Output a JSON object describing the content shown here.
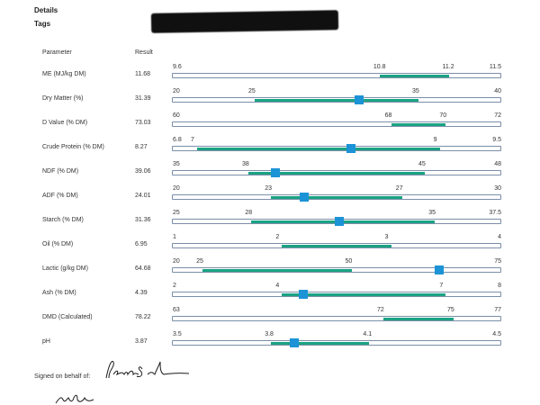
{
  "header": {
    "details_label": "Details",
    "tags_label": "Tags"
  },
  "table": {
    "param_header": "Parameter",
    "result_header": "Result",
    "rows": [
      {
        "name": "ME (MJ/kg DM)",
        "result": "11.68",
        "value": 11.68,
        "min": 9.6,
        "max": 11.5,
        "optimal": [
          10.8,
          11.2
        ],
        "labels": [
          "9.6",
          "10.8",
          "11.2",
          "11.5"
        ],
        "marker": false
      },
      {
        "name": "Dry Matter (%)",
        "result": "31.39",
        "value": 31.39,
        "min": 20,
        "max": 40,
        "optimal": [
          25,
          35
        ],
        "labels": [
          "20",
          "25",
          "35",
          "40"
        ],
        "marker": true
      },
      {
        "name": "D Value (% DM)",
        "result": "73.03",
        "value": 73.03,
        "min": 60,
        "max": 72,
        "optimal": [
          68,
          70
        ],
        "labels": [
          "60",
          "68",
          "70",
          "72"
        ],
        "marker": false
      },
      {
        "name": "Crude Protein (% DM)",
        "result": "8.27",
        "value": 8.27,
        "min": 6.8,
        "max": 9.5,
        "optimal": [
          7,
          9
        ],
        "labels": [
          "6.8",
          "7",
          "9",
          "9.5"
        ],
        "marker": true
      },
      {
        "name": "NDF (% DM)",
        "result": "39.06",
        "value": 39.06,
        "min": 35,
        "max": 48,
        "optimal": [
          38,
          45
        ],
        "labels": [
          "35",
          "38",
          "45",
          "48"
        ],
        "marker": true
      },
      {
        "name": "ADF (% DM)",
        "result": "24.01",
        "value": 24.01,
        "min": 20,
        "max": 30,
        "optimal": [
          23,
          27
        ],
        "labels": [
          "20",
          "23",
          "27",
          "30"
        ],
        "marker": true
      },
      {
        "name": "Starch (% DM)",
        "result": "31.36",
        "value": 31.36,
        "min": 25,
        "max": 37.5,
        "optimal": [
          28,
          35
        ],
        "labels": [
          "25",
          "28",
          "35",
          "37.5"
        ],
        "marker": true
      },
      {
        "name": "Oil (% DM)",
        "result": "6.95",
        "value": 6.95,
        "min": 1,
        "max": 4,
        "optimal": [
          2,
          3
        ],
        "labels": [
          "1",
          "2",
          "3",
          "4"
        ],
        "marker": false
      },
      {
        "name": "Lactic (g/kg DM)",
        "result": "64.68",
        "value": 64.68,
        "min": 20,
        "max": 75,
        "optimal": [
          25,
          50
        ],
        "labels": [
          "20",
          "25",
          "50",
          "75"
        ],
        "marker": true
      },
      {
        "name": "Ash (% DM)",
        "result": "4.39",
        "value": 4.39,
        "min": 2,
        "max": 8,
        "optimal": [
          4,
          7
        ],
        "labels": [
          "2",
          "4",
          "7",
          "8"
        ],
        "marker": true
      },
      {
        "name": "DMD (Calculated)",
        "result": "78.22",
        "value": 78.22,
        "min": 63,
        "max": 77,
        "optimal": [
          72,
          75
        ],
        "labels": [
          "63",
          "72",
          "75",
          "77"
        ],
        "marker": false
      },
      {
        "name": "pH",
        "result": "3.87",
        "value": 3.87,
        "min": 3.5,
        "max": 4.5,
        "optimal": [
          3.8,
          4.1
        ],
        "labels": [
          "3.5",
          "3.8",
          "4.1",
          "4.5"
        ],
        "marker": true
      }
    ]
  },
  "colors": {
    "optimal_band": "#1aa383",
    "marker": "#1b93d6",
    "track_border": "#7b8fa8"
  },
  "footer": {
    "signed_label": "Signed on behalf of:",
    "signature_text": "Padraic Smith"
  }
}
